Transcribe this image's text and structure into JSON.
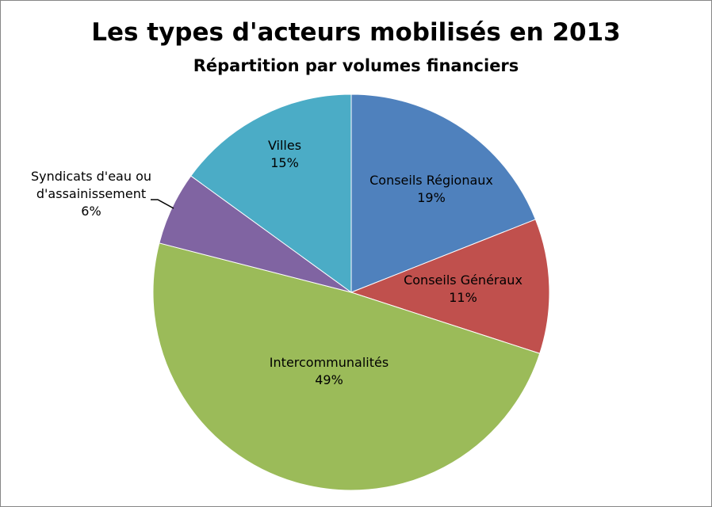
{
  "chart_data": {
    "type": "pie",
    "title": "Les types d'acteurs mobilisés en 2013",
    "subtitle": "Répartition par volumes financiers",
    "slices": [
      {
        "label": "Conseils Régionaux",
        "value": 19,
        "value_label": "19%",
        "color": "#4F81BD"
      },
      {
        "label": "Conseils Généraux",
        "value": 11,
        "value_label": "11%",
        "color": "#C0504D"
      },
      {
        "label": "Intercommunalités",
        "value": 49,
        "value_label": "49%",
        "color": "#9BBB59"
      },
      {
        "label": "Syndicats d'eau ou d'assainissement",
        "value": 6,
        "value_label": "6%",
        "color": "#8064A2"
      },
      {
        "label": "Villes",
        "value": 15,
        "value_label": "15%",
        "color": "#4BACC6"
      }
    ],
    "start": "top",
    "direction": "clockwise",
    "legend": "none"
  }
}
